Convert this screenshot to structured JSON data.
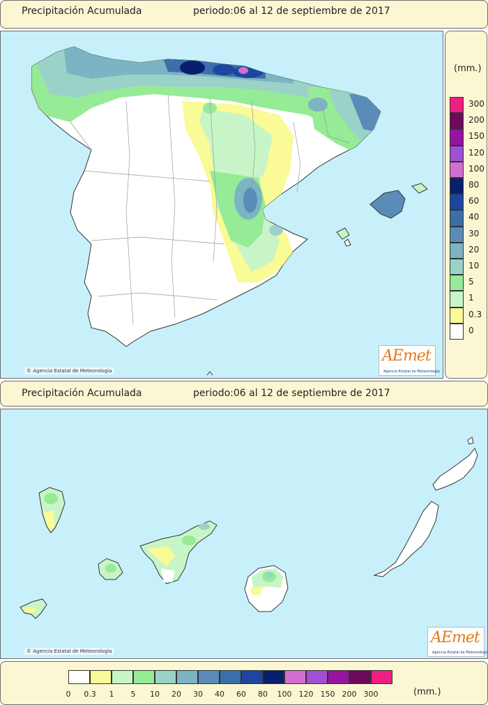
{
  "top_header": {
    "title": "Precipitación Acumulada",
    "period": "periodo:06 al 12 de septiembre de 2017"
  },
  "mid_header": {
    "title": "Precipitación Acumulada",
    "period": "periodo:06 al 12 de septiembre de 2017"
  },
  "credit": "Agencia Estatal de Meteorología",
  "logo": {
    "mark": "AEmet",
    "subtitle": "Agencia Estatal de Meteorología"
  },
  "legend": {
    "unit": "(mm.)",
    "levels": [
      {
        "label": "0",
        "color": "#ffffff"
      },
      {
        "label": "0.3",
        "color": "#fafa96"
      },
      {
        "label": "1",
        "color": "#c8f5c8"
      },
      {
        "label": "5",
        "color": "#96eb96"
      },
      {
        "label": "10",
        "color": "#9bd2c8"
      },
      {
        "label": "20",
        "color": "#7db4c3"
      },
      {
        "label": "30",
        "color": "#5a8cb9"
      },
      {
        "label": "40",
        "color": "#3c6eaa"
      },
      {
        "label": "60",
        "color": "#1e46a0"
      },
      {
        "label": "80",
        "color": "#0a1e6e"
      },
      {
        "label": "100",
        "color": "#d26ed2"
      },
      {
        "label": "120",
        "color": "#a050d2"
      },
      {
        "label": "150",
        "color": "#9614a0"
      },
      {
        "label": "200",
        "color": "#6e0a5a"
      },
      {
        "label": "300",
        "color": "#f01e82"
      }
    ]
  },
  "colors": {
    "sea": "#c8f0fa",
    "panel": "#fbf7d3",
    "land": "#ffffff",
    "border": "#6b6b6b"
  }
}
